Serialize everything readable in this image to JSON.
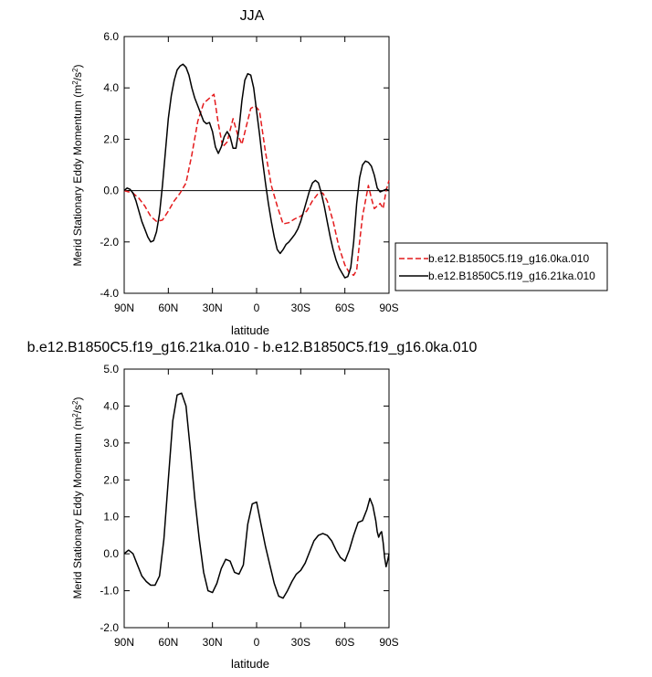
{
  "chart_data": [
    {
      "type": "line",
      "title": "JJA",
      "xlabel": "latitude",
      "ylabel": "Merid Stationary Eddy Momentum (m",
      "ylabel_unit": "2",
      "ylabel_unit2": "/s",
      "ylabel_unit3": "2",
      "ylabel_close": ")",
      "xlim": [
        90,
        -90
      ],
      "ylim": [
        -4.0,
        6.0
      ],
      "xticks": [
        90,
        60,
        30,
        0,
        -30,
        -60,
        -90
      ],
      "xtick_labels": [
        "90N",
        "60N",
        "30N",
        "0",
        "30S",
        "60S",
        "90S"
      ],
      "yticks": [
        -4.0,
        -2.0,
        0.0,
        2.0,
        4.0,
        6.0
      ],
      "ytick_labels": [
        "-4.0",
        "-2.0",
        "0.0",
        "2.0",
        "4.0",
        "6.0"
      ],
      "zero_line": true,
      "legend": "outside-right",
      "series": [
        {
          "name": "b.e12.B1850C5.f19_g16.0ka.010",
          "color": "#e41a1c",
          "dash": "dashed",
          "x": [
            90,
            87,
            84,
            80,
            76,
            72,
            68,
            64,
            60,
            56,
            52,
            48,
            44,
            40,
            36,
            32,
            29,
            26,
            23,
            20,
            16,
            13,
            10,
            7,
            4,
            1,
            -2,
            -6,
            -10,
            -14,
            -18,
            -22,
            -26,
            -30,
            -34,
            -38,
            -42,
            -45,
            -48,
            -52,
            -56,
            -60,
            -63,
            -66,
            -68,
            -70,
            -72,
            -74,
            -76,
            -78,
            -80,
            -82,
            -84,
            -86,
            -88,
            -90
          ],
          "y": [
            0.0,
            -0.05,
            -0.1,
            -0.3,
            -0.6,
            -1.0,
            -1.2,
            -1.15,
            -0.8,
            -0.4,
            -0.1,
            0.3,
            1.4,
            2.7,
            3.4,
            3.6,
            3.75,
            2.6,
            1.7,
            1.9,
            2.8,
            2.2,
            1.8,
            2.5,
            3.2,
            3.3,
            3.1,
            1.5,
            0.2,
            -0.6,
            -1.3,
            -1.25,
            -1.1,
            -1.0,
            -0.8,
            -0.4,
            -0.1,
            -0.1,
            -0.4,
            -1.2,
            -2.2,
            -2.9,
            -3.2,
            -3.3,
            -3.1,
            -2.0,
            -1.0,
            -0.4,
            0.2,
            -0.3,
            -0.7,
            -0.6,
            -0.5,
            -0.7,
            0.0,
            0.4
          ]
        },
        {
          "name": "b.e12.B1850C5.f19_g16.21ka.010",
          "color": "#000000",
          "dash": "solid",
          "x": [
            90,
            88,
            86,
            84,
            82,
            80,
            78,
            76,
            74,
            72,
            70,
            68,
            66,
            64,
            62,
            60,
            58,
            56,
            54,
            52,
            50,
            48,
            46,
            44,
            42,
            40,
            38,
            36,
            34,
            32,
            30,
            28,
            26,
            24,
            22,
            20,
            18,
            16,
            14,
            12,
            10,
            8,
            6,
            4,
            2,
            0,
            -2,
            -4,
            -6,
            -8,
            -10,
            -12,
            -14,
            -16,
            -18,
            -20,
            -22,
            -24,
            -26,
            -28,
            -30,
            -32,
            -34,
            -36,
            -38,
            -40,
            -42,
            -44,
            -46,
            -48,
            -50,
            -52,
            -54,
            -56,
            -58,
            -60,
            -62,
            -64,
            -66,
            -68,
            -70,
            -72,
            -74,
            -76,
            -78,
            -80,
            -82,
            -84,
            -86,
            -88,
            -90
          ],
          "y": [
            0.0,
            0.1,
            0.05,
            -0.1,
            -0.4,
            -0.8,
            -1.2,
            -1.5,
            -1.8,
            -2.0,
            -1.95,
            -1.6,
            -0.9,
            0.2,
            1.5,
            2.8,
            3.7,
            4.3,
            4.7,
            4.85,
            4.92,
            4.8,
            4.5,
            4.0,
            3.6,
            3.3,
            3.0,
            2.7,
            2.6,
            2.65,
            2.3,
            1.7,
            1.45,
            1.7,
            2.1,
            2.3,
            2.1,
            1.65,
            1.65,
            2.4,
            3.5,
            4.3,
            4.55,
            4.5,
            4.0,
            3.1,
            2.2,
            1.2,
            0.3,
            -0.5,
            -1.2,
            -1.8,
            -2.3,
            -2.45,
            -2.3,
            -2.1,
            -2.0,
            -1.85,
            -1.7,
            -1.5,
            -1.2,
            -0.8,
            -0.4,
            0.0,
            0.3,
            0.4,
            0.3,
            -0.1,
            -0.6,
            -1.2,
            -1.8,
            -2.3,
            -2.7,
            -3.0,
            -3.2,
            -3.4,
            -3.35,
            -3.0,
            -2.0,
            -0.5,
            0.5,
            1.0,
            1.15,
            1.1,
            0.95,
            0.6,
            0.1,
            -0.05,
            0.0,
            0.05,
            0.0
          ]
        }
      ]
    },
    {
      "type": "line",
      "title": "b.e12.B1850C5.f19_g16.21ka.010 - b.e12.B1850C5.f19_g16.0ka.010",
      "xlabel": "latitude",
      "ylabel": "Merid Stationary Eddy Momentum (m",
      "ylabel_unit": "2",
      "ylabel_unit2": "/s",
      "ylabel_unit3": "2",
      "ylabel_close": ")",
      "xlim": [
        90,
        -90
      ],
      "ylim": [
        -2.0,
        5.0
      ],
      "xticks": [
        90,
        60,
        30,
        0,
        -30,
        -60,
        -90
      ],
      "xtick_labels": [
        "90N",
        "60N",
        "30N",
        "0",
        "30S",
        "60S",
        "90S"
      ],
      "yticks": [
        -2.0,
        -1.0,
        0.0,
        1.0,
        2.0,
        3.0,
        4.0,
        5.0
      ],
      "ytick_labels": [
        "-2.0",
        "-1.0",
        "0.0",
        "1.0",
        "2.0",
        "3.0",
        "4.0",
        "5.0"
      ],
      "zero_line": false,
      "series": [
        {
          "color": "#000000",
          "dash": "solid",
          "x": [
            90,
            87,
            84,
            81,
            78,
            75,
            72,
            69,
            66,
            63,
            60,
            57,
            54,
            51,
            48,
            45,
            42,
            39,
            36,
            33,
            30,
            27,
            24,
            21,
            18,
            15,
            12,
            9,
            6,
            3,
            0,
            -3,
            -6,
            -9,
            -12,
            -15,
            -18,
            -21,
            -24,
            -27,
            -30,
            -33,
            -36,
            -39,
            -42,
            -45,
            -48,
            -51,
            -54,
            -57,
            -60,
            -63,
            -66,
            -69,
            -72,
            -75,
            -77,
            -79,
            -81,
            -82,
            -83,
            -84,
            -85,
            -86,
            -87,
            -88,
            -89,
            -90
          ],
          "y": [
            0.0,
            0.1,
            0.0,
            -0.3,
            -0.6,
            -0.75,
            -0.85,
            -0.85,
            -0.6,
            0.4,
            2.0,
            3.6,
            4.3,
            4.35,
            4.0,
            2.8,
            1.5,
            0.4,
            -0.5,
            -1.0,
            -1.05,
            -0.8,
            -0.4,
            -0.15,
            -0.2,
            -0.5,
            -0.55,
            -0.3,
            0.8,
            1.35,
            1.4,
            0.8,
            0.2,
            -0.3,
            -0.8,
            -1.15,
            -1.2,
            -1.0,
            -0.75,
            -0.55,
            -0.45,
            -0.25,
            0.05,
            0.35,
            0.5,
            0.55,
            0.5,
            0.35,
            0.1,
            -0.1,
            -0.2,
            0.1,
            0.5,
            0.85,
            0.9,
            1.2,
            1.5,
            1.3,
            0.9,
            0.6,
            0.45,
            0.55,
            0.6,
            0.3,
            -0.1,
            -0.35,
            -0.2,
            0.0
          ]
        }
      ]
    }
  ]
}
